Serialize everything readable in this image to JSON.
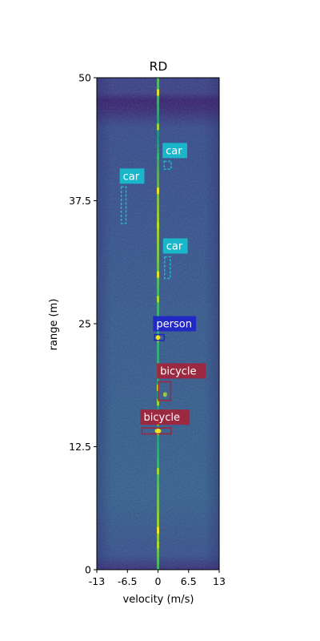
{
  "chart_data": {
    "type": "heatmap",
    "title": "RD",
    "xlabel": "velocity (m/s)",
    "ylabel": "range (m)",
    "xlim": [
      -13,
      13
    ],
    "ylim": [
      0,
      50
    ],
    "x_ticks": [
      -13,
      -6.5,
      0,
      6.5,
      13
    ],
    "x_tick_labels": [
      "-13",
      "-6.5",
      "0",
      "6.5",
      "13"
    ],
    "y_ticks": [
      0,
      12.5,
      25,
      37.5,
      50
    ],
    "y_tick_labels": [
      "0",
      "12.5",
      "25",
      "37.5",
      "50"
    ],
    "colormap": "viridis",
    "grid": false,
    "detections": [
      {
        "label": "car",
        "class": "car",
        "x": [
          1.3,
          2.8
        ],
        "y": [
          40.7,
          41.5
        ],
        "line": "dashed"
      },
      {
        "label": "car",
        "class": "car",
        "x": [
          -7.8,
          -6.8
        ],
        "y": [
          35.2,
          38.9
        ],
        "line": "dashed"
      },
      {
        "label": "car",
        "class": "car",
        "x": [
          1.4,
          2.6
        ],
        "y": [
          29.6,
          31.8
        ],
        "line": "dashed"
      },
      {
        "label": "person",
        "class": "person",
        "x": [
          -0.7,
          1.3
        ],
        "y": [
          23.3,
          23.9
        ],
        "line": "solid"
      },
      {
        "label": "bicycle",
        "class": "bicycle",
        "x": [
          0.1,
          2.7
        ],
        "y": [
          17.2,
          19.1
        ],
        "line": "solid"
      },
      {
        "label": "bicycle",
        "class": "bicycle",
        "x": [
          -3.4,
          2.8
        ],
        "y": [
          13.8,
          14.4
        ],
        "line": "solid"
      }
    ],
    "class_colors": {
      "car": "#17becf",
      "person": "#1f24c8",
      "bicycle": "#a3243a"
    }
  }
}
